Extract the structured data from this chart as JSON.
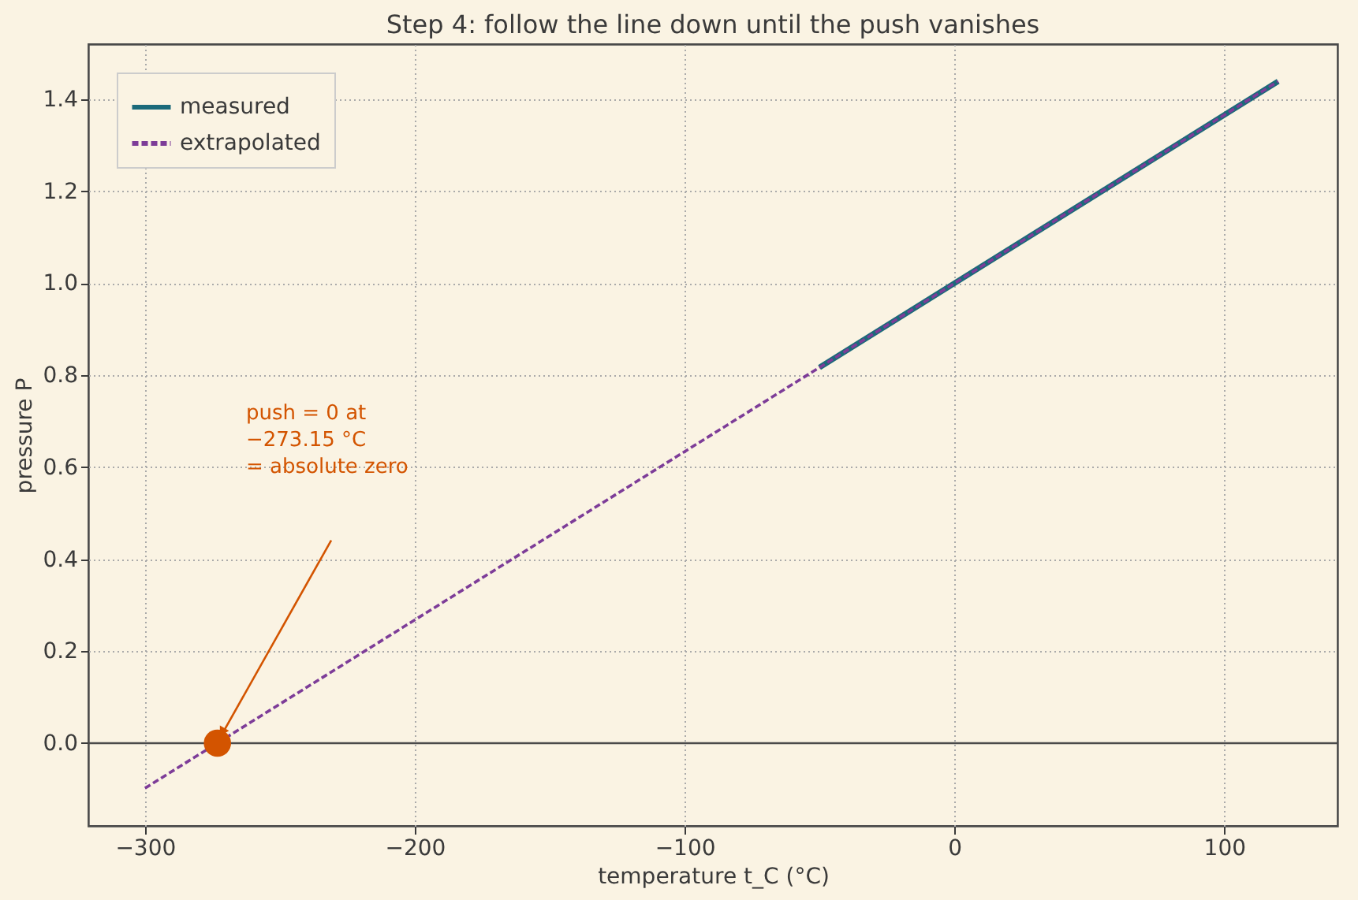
{
  "chart_data": {
    "type": "line",
    "title": "Step 4: follow the line down until the push vanishes",
    "xlabel": "temperature  t_C  (°C)",
    "ylabel": "pressure  P",
    "series": [
      {
        "name": "measured",
        "color": "#1b6a7a",
        "x": [
          -50,
          120
        ],
        "values": [
          0.817,
          1.439
        ],
        "line_style": "solid"
      },
      {
        "name": "extrapolated",
        "color": "#7d3c98",
        "x": [
          -300,
          120
        ],
        "values": [
          -0.098,
          1.439
        ],
        "line_style": "dashed"
      },
      {
        "type": "scatter",
        "color": "#d35400",
        "x": [
          -273.15
        ],
        "values": [
          0
        ],
        "marker": "circle"
      }
    ],
    "annotations": [
      "push = 0 at\n−273.15 °C\n= absolute zero"
    ],
    "ref_lines": [
      {
        "axis": "y",
        "value": 0,
        "color": "#4a4a4a"
      }
    ],
    "xlim": [
      -321,
      142
    ],
    "ylim": [
      -0.18,
      1.52
    ],
    "xticks": [
      -300,
      -200,
      -100,
      0,
      100
    ],
    "yticks": [
      {
        "value": 0,
        "label": "0.0"
      },
      {
        "value": 0.2,
        "label": "0.2"
      },
      {
        "value": 0.4,
        "label": "0.4"
      },
      {
        "value": 0.6,
        "label": "0.6"
      },
      {
        "value": 0.8,
        "label": "0.8"
      },
      {
        "value": 1.0,
        "label": "1.0"
      },
      {
        "value": 1.2,
        "label": "1.2"
      },
      {
        "value": 1.4,
        "label": "1.4"
      }
    ],
    "grid": true,
    "legend": "top left"
  }
}
